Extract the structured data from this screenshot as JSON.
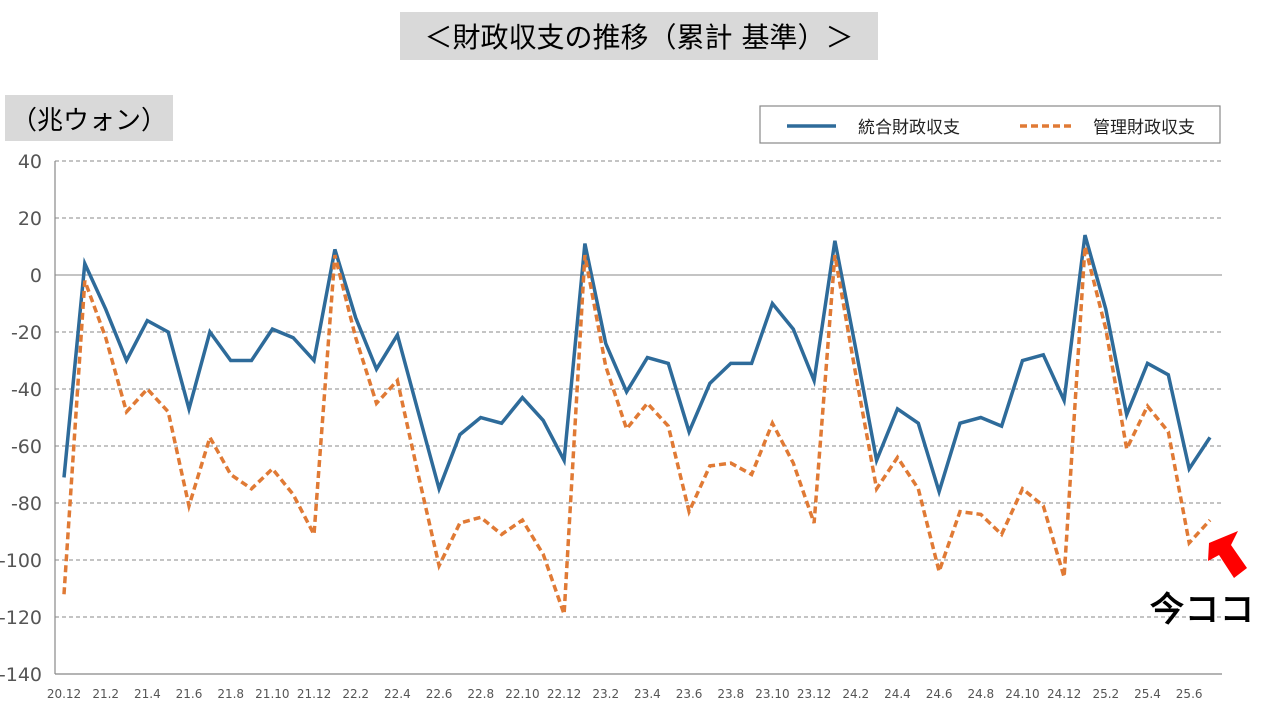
{
  "title": "＜財政収支の推移（累計 基準）＞",
  "unit_label": "（兆ウォン）",
  "annotation": "今ココ",
  "colors": {
    "integrated": "#2E6B9A",
    "managed": "#E07A35",
    "arrow": "#FF0000",
    "grid": "#888888"
  },
  "chart_data": {
    "type": "line",
    "title": "＜財政収支の推移（累計 基準）＞",
    "ylabel": "（兆ウォン）",
    "xlabel": "",
    "ylim": [
      -140,
      40
    ],
    "yticks": [
      40,
      20,
      0,
      -20,
      -40,
      -60,
      -80,
      -100,
      -120,
      -140
    ],
    "legend_position": "top-right",
    "grid": true,
    "x_tick_labels": [
      "20.12",
      "21.2",
      "21.4",
      "21.6",
      "21.8",
      "21.10",
      "21.12",
      "22.2",
      "22.4",
      "22.6",
      "22.8",
      "22.10",
      "22.12",
      "23.2",
      "23.4",
      "23.6",
      "23.8",
      "23.10",
      "23.12",
      "24.2",
      "24.4",
      "24.6",
      "24.8",
      "24.10",
      "24.12",
      "25.2",
      "25.4",
      "25.6"
    ],
    "series": [
      {
        "name": "統合財政収支",
        "style": "solid",
        "values": [
          -71,
          4,
          -12,
          -30,
          -16,
          -20,
          -47,
          -20,
          -30,
          -30,
          -19,
          -22,
          -30,
          9,
          -15,
          -33,
          -21,
          -48,
          -75,
          -56,
          -50,
          -52,
          -43,
          -51,
          -65,
          11,
          -24,
          -41,
          -29,
          -31,
          -55,
          -38,
          -31,
          -31,
          -10,
          -19,
          -37,
          12,
          -26,
          -65,
          -47,
          -52,
          -76,
          -52,
          -50,
          -53,
          -30,
          -28,
          -44,
          14,
          -12,
          -49,
          -31,
          -35,
          -68,
          -57
        ]
      },
      {
        "name": "管理財政収支",
        "style": "dashed",
        "values": [
          -112,
          -2,
          -22,
          -48,
          -40,
          -48,
          -81,
          -57,
          -70,
          -75,
          -68,
          -77,
          -91,
          7,
          -22,
          -45,
          -37,
          -70,
          -102,
          -87,
          -85,
          -91,
          -86,
          -98,
          -119,
          7,
          -32,
          -54,
          -45,
          -53,
          -83,
          -67,
          -66,
          -70,
          -52,
          -66,
          -87,
          7,
          -35,
          -75,
          -64,
          -75,
          -104,
          -83,
          -84,
          -91,
          -75,
          -81,
          -106,
          10,
          -19,
          -61,
          -46,
          -55,
          -94,
          -86
        ]
      }
    ]
  }
}
